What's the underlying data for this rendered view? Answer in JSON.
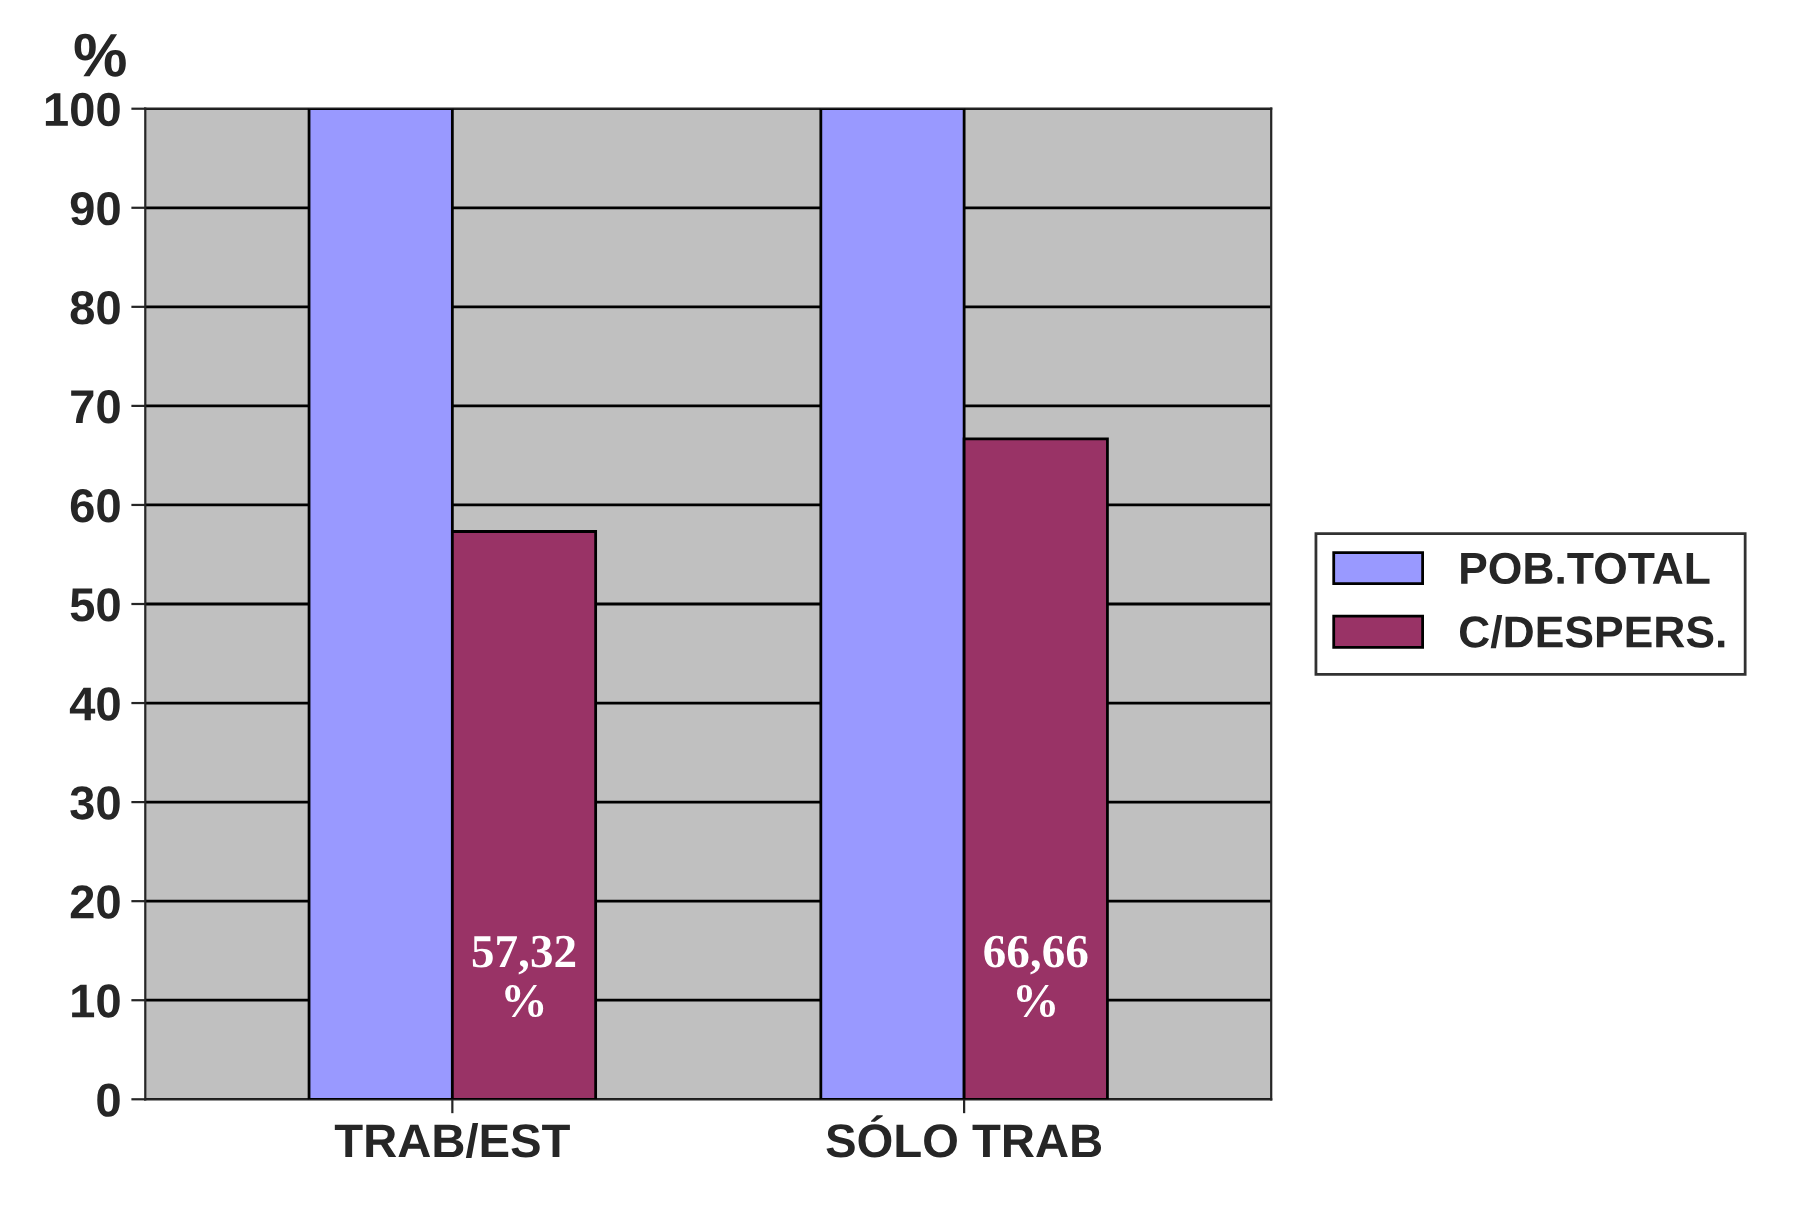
{
  "chart_data": {
    "type": "bar",
    "ylabel": "%",
    "categories": [
      "TRAB/EST",
      "SÓLO TRAB"
    ],
    "series": [
      {
        "name": "POB.TOTAL",
        "color": "#9999ff",
        "values": [
          100,
          100
        ]
      },
      {
        "name": "C/DESPERS.",
        "color": "#993366",
        "values": [
          57.32,
          66.66
        ],
        "value_labels": [
          "57,32 %",
          "66,66 %"
        ]
      }
    ],
    "ylim": [
      0,
      100
    ],
    "yticks": [
      0,
      10,
      20,
      30,
      40,
      50,
      60,
      70,
      80,
      90,
      100
    ],
    "grid": "y",
    "legend": "right"
  }
}
